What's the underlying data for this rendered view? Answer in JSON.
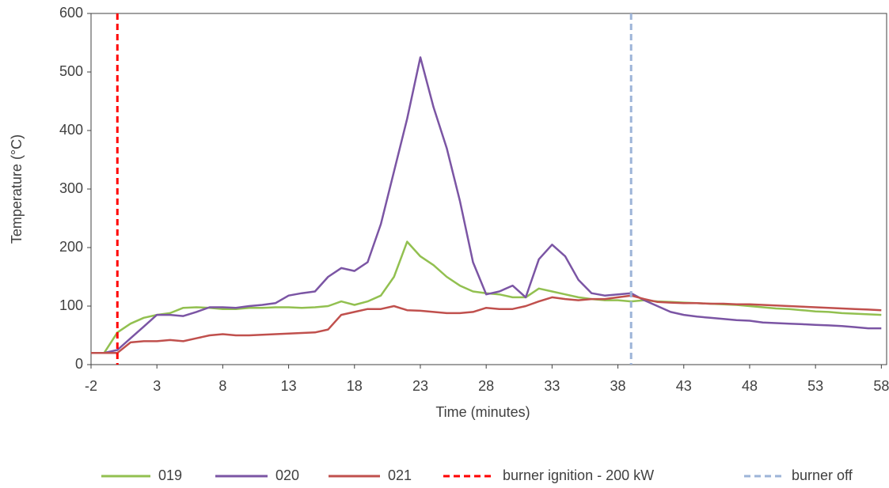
{
  "chart_data": {
    "type": "line",
    "x_label": "Time (minutes)",
    "y_label": "Temperature (°C)",
    "x": [
      -2,
      -1,
      0,
      1,
      2,
      3,
      4,
      5,
      6,
      7,
      8,
      9,
      10,
      11,
      12,
      13,
      14,
      15,
      16,
      17,
      18,
      19,
      20,
      21,
      22,
      23,
      24,
      25,
      26,
      27,
      28,
      29,
      30,
      31,
      32,
      33,
      34,
      35,
      36,
      37,
      38,
      39,
      40,
      41,
      42,
      43,
      44,
      45,
      46,
      47,
      48,
      49,
      50,
      51,
      52,
      53,
      54,
      55,
      56,
      57,
      58
    ],
    "series": [
      {
        "name": "019",
        "color": "#92c050",
        "values": [
          20,
          20,
          55,
          70,
          80,
          85,
          88,
          97,
          98,
          97,
          95,
          95,
          97,
          97,
          98,
          98,
          97,
          98,
          100,
          108,
          102,
          108,
          118,
          150,
          210,
          185,
          170,
          150,
          135,
          125,
          122,
          120,
          115,
          115,
          130,
          125,
          120,
          115,
          112,
          110,
          110,
          108,
          110,
          108,
          107,
          106,
          105,
          104,
          103,
          102,
          100,
          98,
          96,
          95,
          93,
          91,
          90,
          88,
          87,
          86,
          85
        ]
      },
      {
        "name": "020",
        "color": "#7b55a4",
        "values": [
          20,
          20,
          25,
          45,
          65,
          85,
          85,
          83,
          90,
          98,
          98,
          97,
          100,
          102,
          105,
          118,
          122,
          125,
          150,
          165,
          160,
          175,
          240,
          330,
          420,
          525,
          440,
          370,
          280,
          175,
          120,
          125,
          135,
          115,
          180,
          205,
          185,
          145,
          122,
          118,
          120,
          122,
          110,
          100,
          90,
          85,
          82,
          80,
          78,
          76,
          75,
          72,
          71,
          70,
          69,
          68,
          67,
          66,
          64,
          62,
          62
        ]
      },
      {
        "name": "021",
        "color": "#c0504d",
        "values": [
          20,
          20,
          20,
          38,
          40,
          40,
          42,
          40,
          45,
          50,
          52,
          50,
          50,
          51,
          52,
          53,
          54,
          55,
          60,
          85,
          90,
          95,
          95,
          100,
          93,
          92,
          90,
          88,
          88,
          90,
          97,
          95,
          95,
          100,
          108,
          115,
          112,
          110,
          112,
          112,
          115,
          118,
          112,
          107,
          106,
          105,
          105,
          104,
          104,
          103,
          103,
          102,
          101,
          100,
          99,
          98,
          97,
          96,
          95,
          94,
          93
        ]
      }
    ],
    "vlines": [
      {
        "name": "burner ignition - 200 kW",
        "x": 0,
        "color": "#ff0000"
      },
      {
        "name": "burner off",
        "x": 39,
        "color": "#9db4d8"
      }
    ],
    "xlim": [
      -2,
      58.4
    ],
    "ylim": [
      0,
      600
    ],
    "xticks": [
      -2,
      3,
      8,
      13,
      18,
      23,
      28,
      33,
      38,
      43,
      48,
      53,
      58
    ],
    "yticks": [
      0,
      100,
      200,
      300,
      400,
      500,
      600
    ]
  }
}
